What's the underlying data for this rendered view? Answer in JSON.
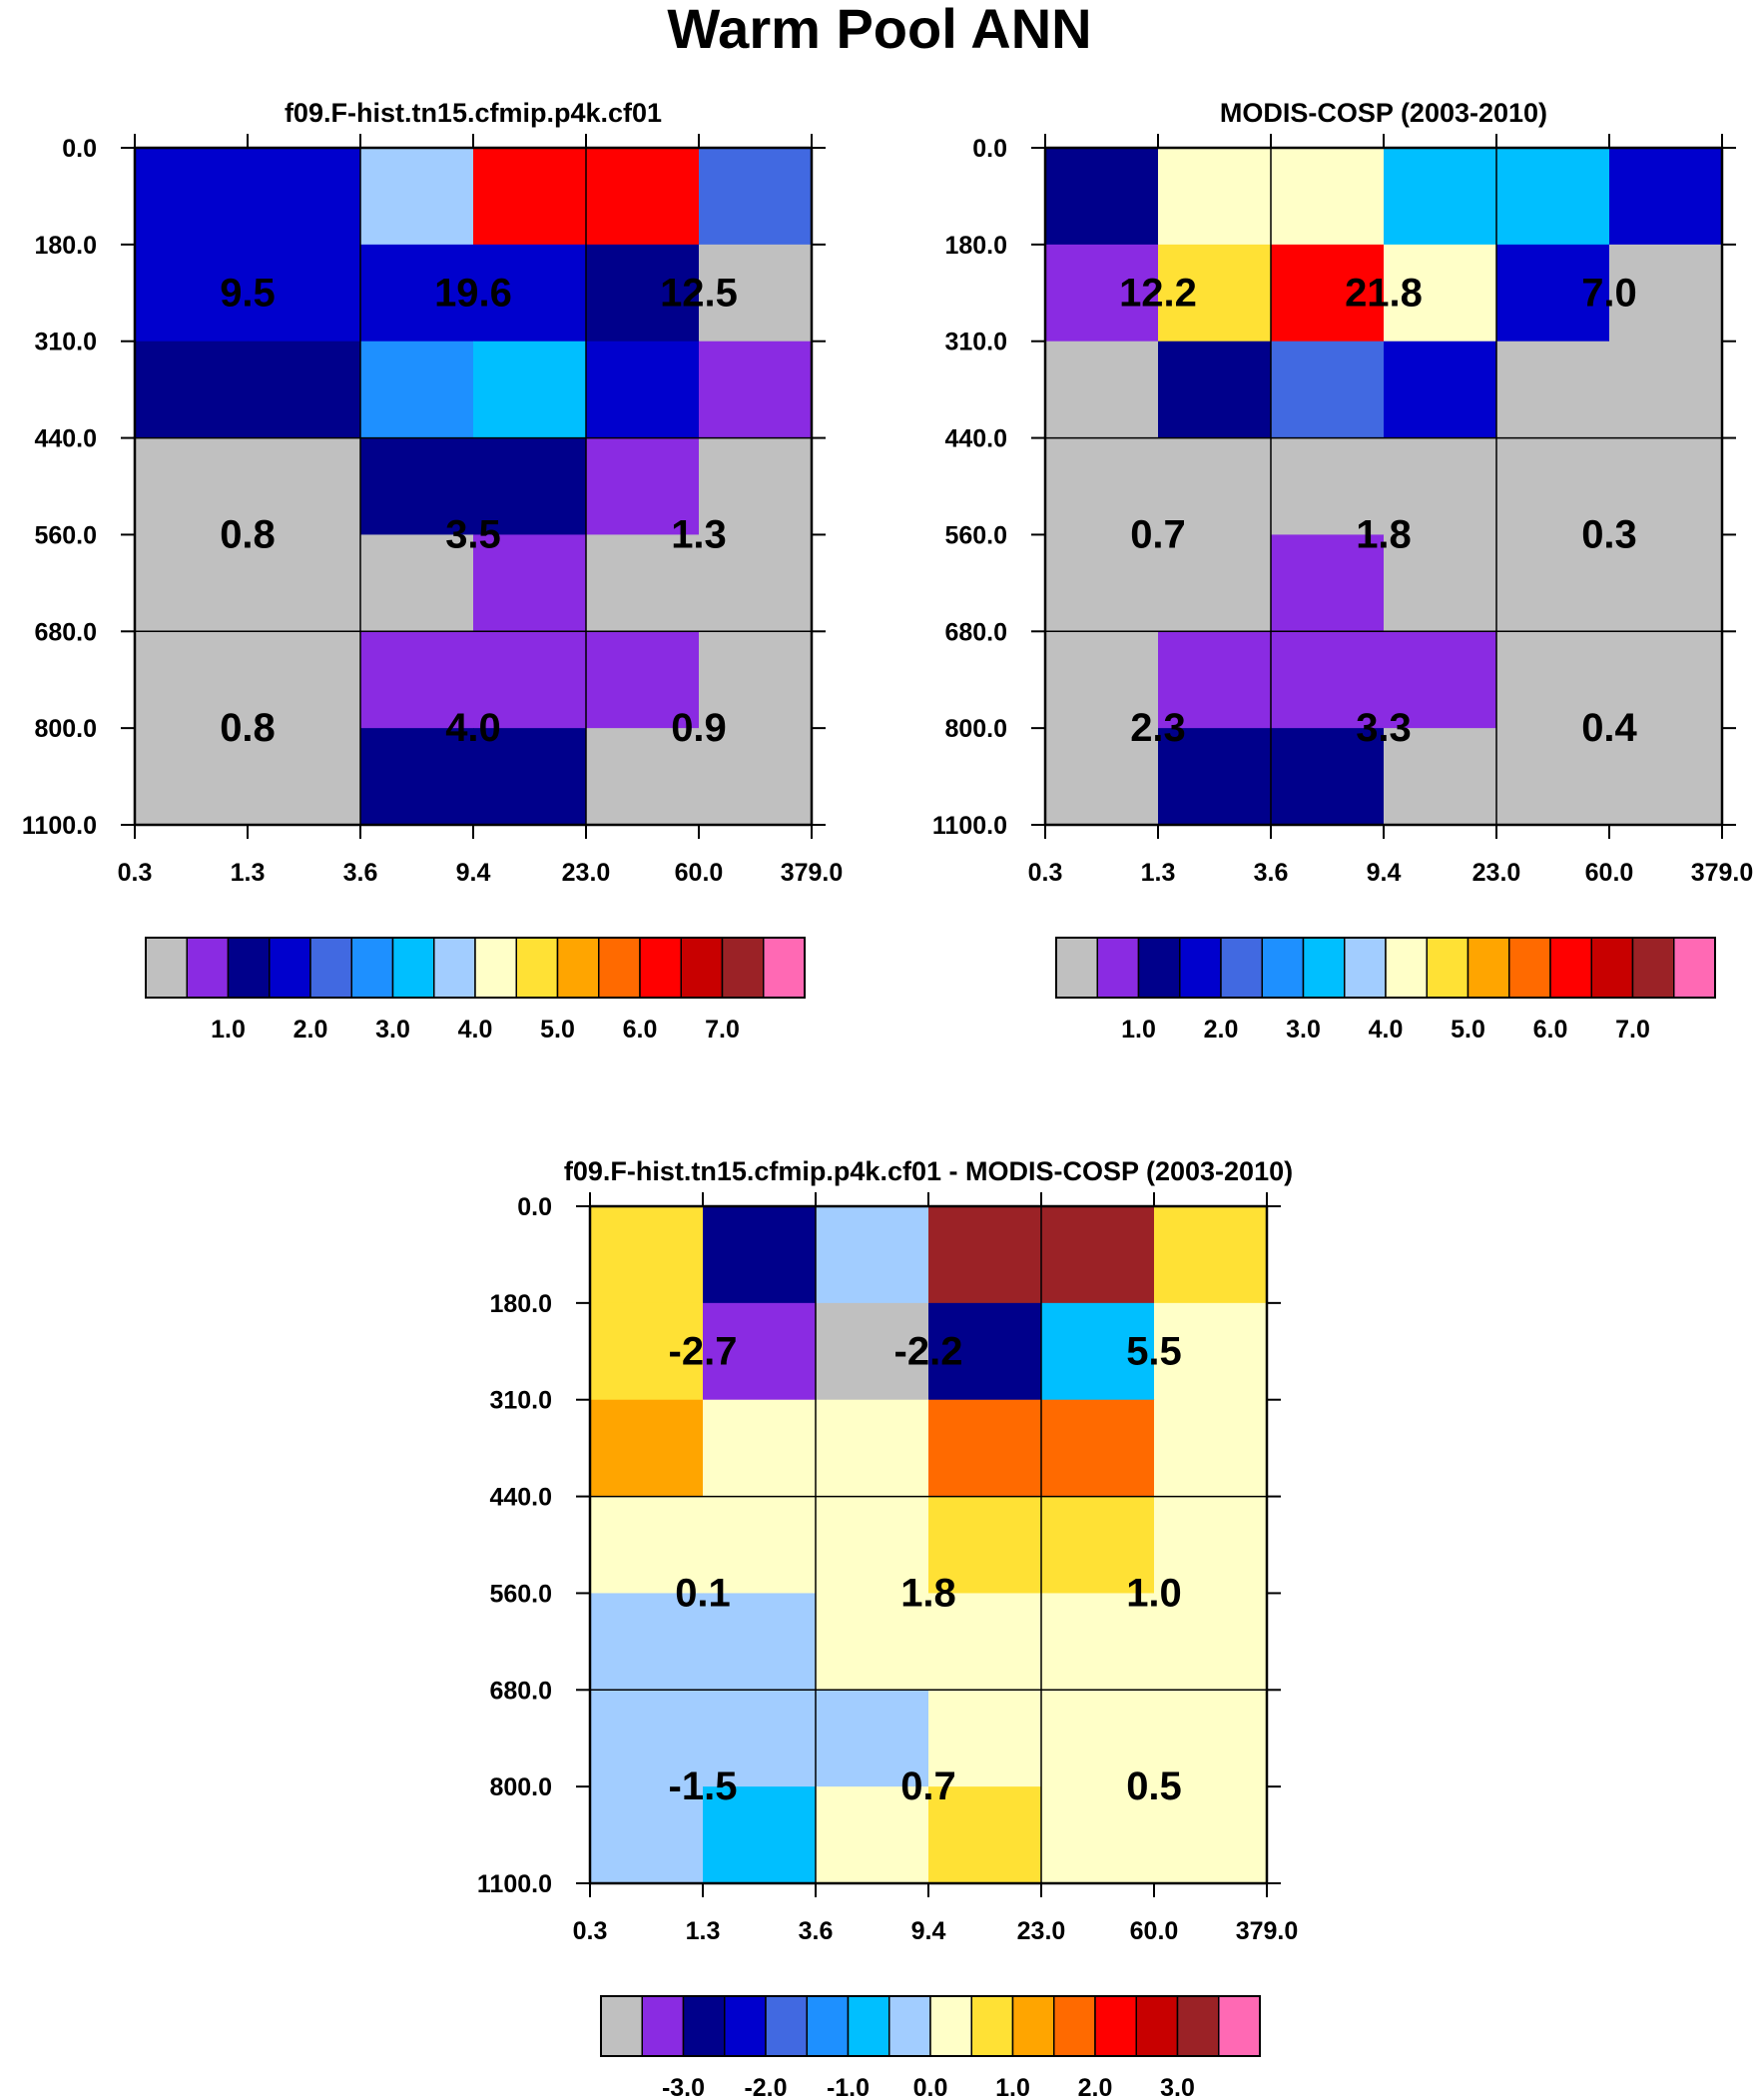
{
  "figure_title": "Warm Pool ANN",
  "palette": [
    "#C0C0C0",
    "#8A2BE2",
    "#00008B",
    "#0000CD",
    "#4169E1",
    "#1E90FF",
    "#00BFFF",
    "#A2CDFF",
    "#FFFFC8",
    "#FFE135",
    "#FFA500",
    "#FF6A00",
    "#FF0000",
    "#C80000",
    "#9B2226",
    "#FF69B4"
  ],
  "chart_data": [
    {
      "type": "heatmap",
      "title": "f09.F-hist.tn15.cfmip.p4k.cf01",
      "x_ticks": [
        "0.3",
        "1.3",
        "3.6",
        "9.4",
        "23.0",
        "60.0",
        "379.0"
      ],
      "y_ticks": [
        "0.0",
        "180.0",
        "310.0",
        "440.0",
        "560.0",
        "680.0",
        "800.0",
        "1100.0"
      ],
      "cells": [
        [
          3,
          3,
          7,
          12,
          12,
          4
        ],
        [
          3,
          3,
          3,
          3,
          2,
          0
        ],
        [
          2,
          2,
          5,
          6,
          3,
          1
        ],
        [
          0,
          0,
          2,
          2,
          1,
          0
        ],
        [
          0,
          0,
          0,
          1,
          0,
          0
        ],
        [
          0,
          0,
          1,
          1,
          1,
          0
        ],
        [
          0,
          0,
          2,
          2,
          0,
          0
        ]
      ],
      "block_labels": [
        {
          "col": 0,
          "row": 0,
          "text": "9.5"
        },
        {
          "col": 1,
          "row": 0,
          "text": "19.6"
        },
        {
          "col": 2,
          "row": 0,
          "text": "12.5"
        },
        {
          "col": 0,
          "row": 1,
          "text": "0.8"
        },
        {
          "col": 1,
          "row": 1,
          "text": "3.5"
        },
        {
          "col": 2,
          "row": 1,
          "text": "1.3"
        },
        {
          "col": 0,
          "row": 2,
          "text": "0.8"
        },
        {
          "col": 1,
          "row": 2,
          "text": "4.0"
        },
        {
          "col": 2,
          "row": 2,
          "text": "0.9"
        }
      ],
      "colorbar_labels": [
        {
          "boundary": 2,
          "text": "1.0"
        },
        {
          "boundary": 4,
          "text": "2.0"
        },
        {
          "boundary": 6,
          "text": "3.0"
        },
        {
          "boundary": 8,
          "text": "4.0"
        },
        {
          "boundary": 10,
          "text": "5.0"
        },
        {
          "boundary": 12,
          "text": "6.0"
        },
        {
          "boundary": 14,
          "text": "7.0"
        }
      ]
    },
    {
      "type": "heatmap",
      "title": "MODIS-COSP (2003-2010)",
      "x_ticks": [
        "0.3",
        "1.3",
        "3.6",
        "9.4",
        "23.0",
        "60.0",
        "379.0"
      ],
      "y_ticks": [
        "0.0",
        "180.0",
        "310.0",
        "440.0",
        "560.0",
        "680.0",
        "800.0",
        "1100.0"
      ],
      "cells": [
        [
          2,
          8,
          8,
          6,
          6,
          3
        ],
        [
          1,
          9,
          12,
          8,
          3,
          0
        ],
        [
          0,
          2,
          4,
          3,
          0,
          0
        ],
        [
          0,
          0,
          0,
          0,
          0,
          0
        ],
        [
          0,
          0,
          1,
          0,
          0,
          0
        ],
        [
          0,
          1,
          1,
          1,
          0,
          0
        ],
        [
          0,
          2,
          2,
          0,
          0,
          0
        ]
      ],
      "block_labels": [
        {
          "col": 0,
          "row": 0,
          "text": "12.2"
        },
        {
          "col": 1,
          "row": 0,
          "text": "21.8"
        },
        {
          "col": 2,
          "row": 0,
          "text": "7.0"
        },
        {
          "col": 0,
          "row": 1,
          "text": "0.7"
        },
        {
          "col": 1,
          "row": 1,
          "text": "1.8"
        },
        {
          "col": 2,
          "row": 1,
          "text": "0.3"
        },
        {
          "col": 0,
          "row": 2,
          "text": "2.3"
        },
        {
          "col": 1,
          "row": 2,
          "text": "3.3"
        },
        {
          "col": 2,
          "row": 2,
          "text": "0.4"
        }
      ],
      "colorbar_labels": [
        {
          "boundary": 2,
          "text": "1.0"
        },
        {
          "boundary": 4,
          "text": "2.0"
        },
        {
          "boundary": 6,
          "text": "3.0"
        },
        {
          "boundary": 8,
          "text": "4.0"
        },
        {
          "boundary": 10,
          "text": "5.0"
        },
        {
          "boundary": 12,
          "text": "6.0"
        },
        {
          "boundary": 14,
          "text": "7.0"
        }
      ]
    },
    {
      "type": "heatmap",
      "title": "f09.F-hist.tn15.cfmip.p4k.cf01 - MODIS-COSP (2003-2010)",
      "x_ticks": [
        "0.3",
        "1.3",
        "3.6",
        "9.4",
        "23.0",
        "60.0",
        "379.0"
      ],
      "y_ticks": [
        "0.0",
        "180.0",
        "310.0",
        "440.0",
        "560.0",
        "680.0",
        "800.0",
        "1100.0"
      ],
      "cells": [
        [
          9,
          2,
          7,
          14,
          14,
          9
        ],
        [
          9,
          1,
          0,
          2,
          6,
          8
        ],
        [
          10,
          8,
          8,
          11,
          11,
          8
        ],
        [
          8,
          8,
          8,
          9,
          9,
          8
        ],
        [
          7,
          7,
          8,
          8,
          8,
          8
        ],
        [
          7,
          7,
          7,
          8,
          8,
          8
        ],
        [
          7,
          6,
          8,
          9,
          8,
          8
        ]
      ],
      "block_labels": [
        {
          "col": 0,
          "row": 0,
          "text": "-2.7"
        },
        {
          "col": 1,
          "row": 0,
          "text": "-2.2"
        },
        {
          "col": 2,
          "row": 0,
          "text": "5.5"
        },
        {
          "col": 0,
          "row": 1,
          "text": "0.1"
        },
        {
          "col": 1,
          "row": 1,
          "text": "1.8"
        },
        {
          "col": 2,
          "row": 1,
          "text": "1.0"
        },
        {
          "col": 0,
          "row": 2,
          "text": "-1.5"
        },
        {
          "col": 1,
          "row": 2,
          "text": "0.7"
        },
        {
          "col": 2,
          "row": 2,
          "text": "0.5"
        }
      ],
      "colorbar_labels": [
        {
          "boundary": 2,
          "text": "-3.0"
        },
        {
          "boundary": 4,
          "text": "-2.0"
        },
        {
          "boundary": 6,
          "text": "-1.0"
        },
        {
          "boundary": 8,
          "text": "0.0"
        },
        {
          "boundary": 10,
          "text": "1.0"
        },
        {
          "boundary": 12,
          "text": "2.0"
        },
        {
          "boundary": 14,
          "text": "3.0"
        }
      ]
    }
  ]
}
